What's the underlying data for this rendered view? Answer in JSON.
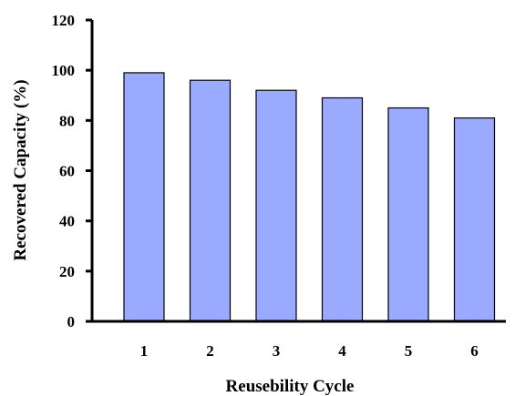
{
  "chart_data": {
    "type": "bar",
    "title": "",
    "xlabel": "Reusebility Cycle",
    "ylabel": "Recovered Capacity (%)",
    "categories": [
      "1",
      "2",
      "3",
      "4",
      "5",
      "6"
    ],
    "values": [
      99,
      96,
      92,
      89,
      85,
      81
    ],
    "ylim": [
      0,
      120
    ],
    "yticks": [
      "0",
      "20",
      "40",
      "60",
      "80",
      "100",
      "120"
    ],
    "grid": false,
    "legend": "none",
    "bar_color": "#99AAFF",
    "bar_edge_color": "#000000"
  }
}
